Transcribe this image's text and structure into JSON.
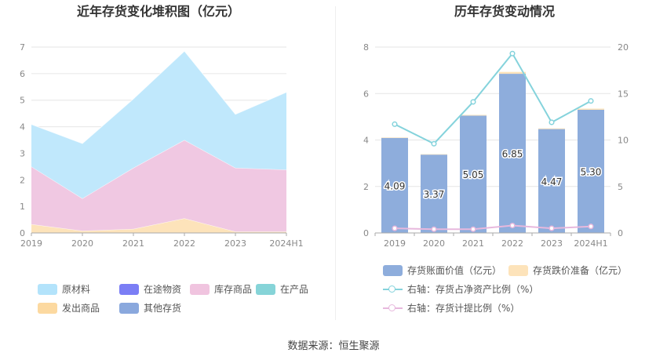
{
  "footer": {
    "source": "数据来源：恒生聚源"
  },
  "chart_data": [
    {
      "type": "area",
      "title": "近年存货变化堆积图（亿元）",
      "x": [
        "2019",
        "2020",
        "2021",
        "2022",
        "2023",
        "2024H1"
      ],
      "ylim": [
        0,
        7
      ],
      "yticks": [
        "0",
        "1",
        "2",
        "3",
        "4",
        "5",
        "6",
        "7"
      ],
      "stacked": true,
      "grid": true,
      "legend_position": "bottom",
      "legend": [
        {
          "name": "原材料",
          "color": "#b3e3fb"
        },
        {
          "name": "在途物资",
          "color": "#7b7ef5"
        },
        {
          "name": "库存商品",
          "color": "#f0c4df"
        },
        {
          "name": "在产品",
          "color": "#86d4d8"
        },
        {
          "name": "发出商品",
          "color": "#fcd9a0"
        },
        {
          "name": "其他存货",
          "color": "#8aa8dd"
        }
      ],
      "series": [
        {
          "name": "发出商品",
          "color": "#fde3ba",
          "values": [
            0.33,
            0.08,
            0.15,
            0.55,
            0.05,
            0.05
          ]
        },
        {
          "name": "库存商品",
          "color": "#f0c8e2",
          "values": [
            2.17,
            1.22,
            2.3,
            2.95,
            2.4,
            2.33
          ]
        },
        {
          "name": "原材料",
          "color": "#c0e8fc",
          "values": [
            1.59,
            2.07,
            2.6,
            3.35,
            2.02,
            2.92
          ]
        }
      ]
    },
    {
      "type": "bar",
      "title": "历年存货变动情况",
      "categories": [
        "2019",
        "2020",
        "2021",
        "2022",
        "2023",
        "2024H1"
      ],
      "ylim_left": [
        0,
        8
      ],
      "yticks_left": [
        "0",
        "2",
        "4",
        "6",
        "8"
      ],
      "ylim_right": [
        0,
        20
      ],
      "yticks_right": [
        "0",
        "5",
        "10",
        "15",
        "20"
      ],
      "grid": true,
      "legend_position": "bottom",
      "bar_series": [
        {
          "name": "存货账面价值（亿元）",
          "color": "#8eaddc",
          "values": [
            4.09,
            3.37,
            5.05,
            6.85,
            4.47,
            5.3
          ],
          "labels": [
            "4.09",
            "3.37",
            "5.05",
            "6.85",
            "4.47",
            "5.30"
          ]
        },
        {
          "name": "存货跌价准备（亿元）",
          "color": "#fde3ba",
          "values": [
            0.02,
            0.02,
            0.03,
            0.08,
            0.03,
            0.05
          ]
        }
      ],
      "line_series": [
        {
          "name": "右轴：存货占净资产比例（%）",
          "color": "#85d3dc",
          "values": [
            11.7,
            9.6,
            14.1,
            19.3,
            11.9,
            14.2
          ]
        },
        {
          "name": "右轴：存货计提比例（%）",
          "color": "#e7b8dd",
          "values": [
            0.5,
            0.4,
            0.4,
            0.8,
            0.5,
            0.7
          ]
        }
      ]
    }
  ]
}
